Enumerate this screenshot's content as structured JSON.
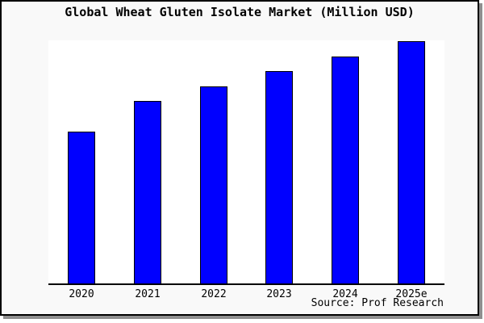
{
  "title": "Global Wheat Gluten Isolate Market (Million USD)",
  "source_credit": "Source: Prof Research",
  "colors": {
    "bar_fill": "#0000ff",
    "bar_border": "#000000",
    "frame_background": "#f9f9f9",
    "plot_background": "#ffffff",
    "axis_line": "#000000",
    "frame_border": "#000000",
    "frame_shadow": "#8f8f8f",
    "text": "#000000"
  },
  "chart_data": {
    "type": "bar",
    "title": "Global Wheat Gluten Isolate Market (Million USD)",
    "categories": [
      "2020",
      "2021",
      "2022",
      "2023",
      "2024",
      "2025e"
    ],
    "values": [
      0.627,
      0.753,
      0.813,
      0.877,
      0.937,
      1.0
    ],
    "values_note": "No y-axis scale shown in the chart; values are bar heights relative to the tallest (2025e) bar",
    "xlabel": "",
    "ylabel": "Million USD",
    "ylim": [
      0,
      1.005
    ],
    "grid": false,
    "legend": false,
    "annotations": [
      "Source: Prof Research"
    ]
  }
}
